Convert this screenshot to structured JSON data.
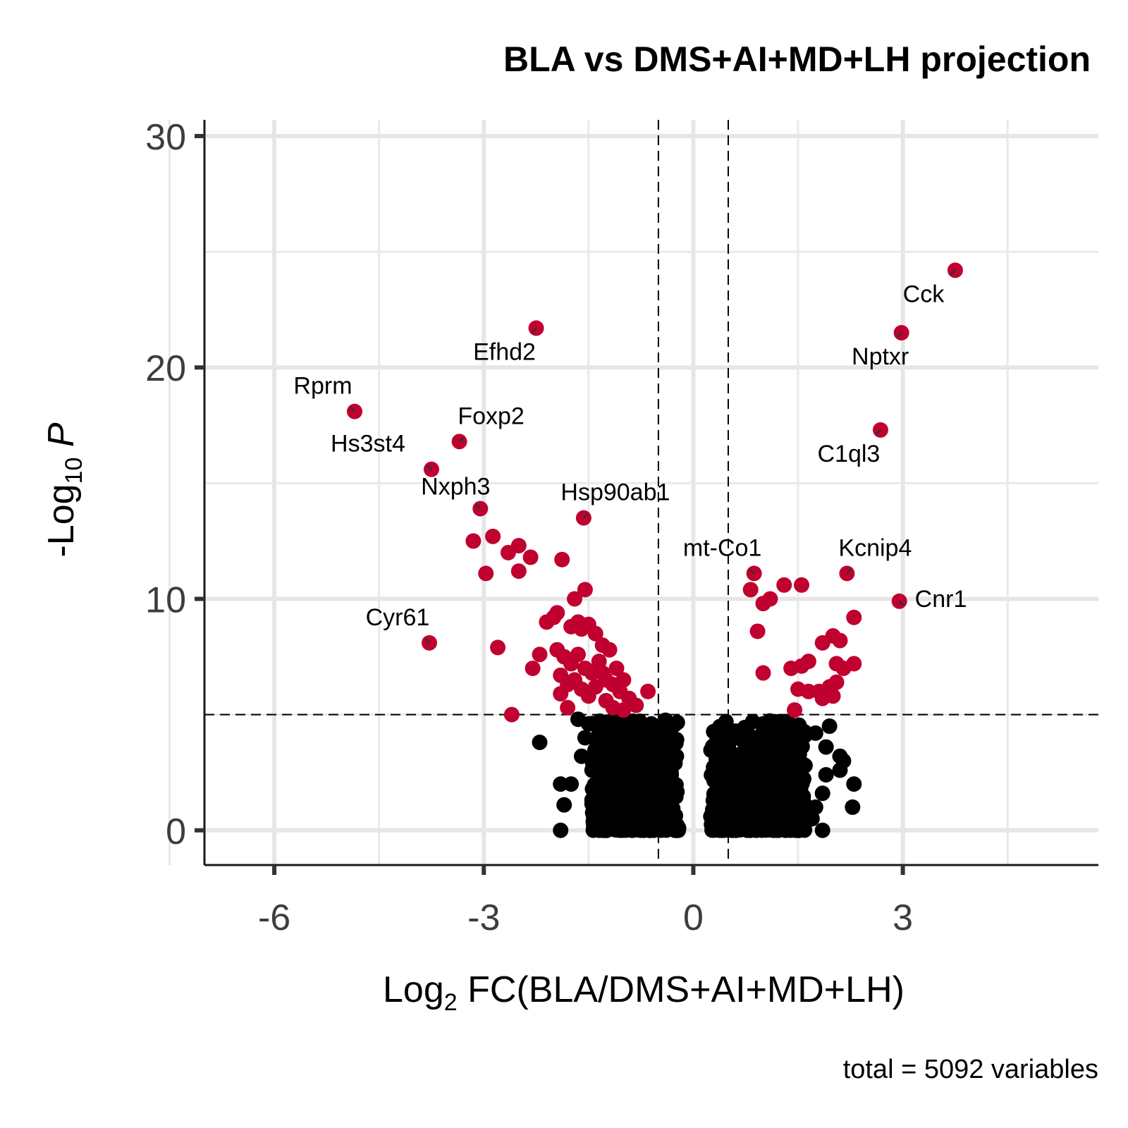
{
  "chart_data": {
    "type": "scatter",
    "title": "BLA vs DMS+AI+MD+LH projection",
    "xlabel_main": "Log",
    "xlabel_sub": "2",
    "xlabel_rest": " FC(BLA/DMS+AI+MD+LH)",
    "ylabel_main": "-Log",
    "ylabel_sub": "10",
    "ylabel_rest": " P",
    "caption": "total = 5092 variables",
    "xlim": [
      -7,
      5.8
    ],
    "ylim": [
      -1.5,
      30.7
    ],
    "x_ticks": [
      -6,
      -3,
      0,
      3
    ],
    "x_tick_labels": [
      "-6",
      "-3",
      "0",
      "3"
    ],
    "y_ticks": [
      0,
      10,
      20,
      30
    ],
    "y_tick_labels": [
      "0",
      "10",
      "20",
      "30"
    ],
    "fc_cutoff": 0.5,
    "p_cutoff": 5,
    "grid": true,
    "legend": "none",
    "colors": {
      "significant": "#C0002F",
      "not_significant": "#000000",
      "grid": "#E6E6E6"
    },
    "labeled_points": [
      {
        "gene": "Cck",
        "x": 3.75,
        "y": 24.2
      },
      {
        "gene": "Efhd2",
        "x": -2.25,
        "y": 21.7
      },
      {
        "gene": "Nptxr",
        "x": 2.98,
        "y": 21.5
      },
      {
        "gene": "Rprm",
        "x": -4.85,
        "y": 18.1
      },
      {
        "gene": "C1ql3",
        "x": 2.68,
        "y": 17.3
      },
      {
        "gene": "Foxp2",
        "x": -3.35,
        "y": 16.8
      },
      {
        "gene": "Hs3st4",
        "x": -3.75,
        "y": 15.6
      },
      {
        "gene": "Nxph3",
        "x": -3.05,
        "y": 13.9
      },
      {
        "gene": "Hsp90ab1",
        "x": -1.57,
        "y": 13.5
      },
      {
        "gene": "mt-Co1",
        "x": 0.87,
        "y": 11.1
      },
      {
        "gene": "Kcnip4",
        "x": 2.2,
        "y": 11.1
      },
      {
        "gene": "Cnr1",
        "x": 2.95,
        "y": 9.9
      },
      {
        "gene": "Cyr61",
        "x": -3.78,
        "y": 8.1
      }
    ],
    "significant_points": [
      [
        -3.15,
        12.5
      ],
      [
        -2.87,
        12.7
      ],
      [
        -2.65,
        12.0
      ],
      [
        -2.5,
        12.3
      ],
      [
        -2.33,
        11.8
      ],
      [
        -2.5,
        11.2
      ],
      [
        -2.97,
        11.1
      ],
      [
        -1.88,
        11.7
      ],
      [
        -1.7,
        10.0
      ],
      [
        -1.55,
        10.4
      ],
      [
        -2.1,
        9.0
      ],
      [
        -2.0,
        9.2
      ],
      [
        -1.95,
        9.4
      ],
      [
        -1.75,
        8.8
      ],
      [
        -1.65,
        9.0
      ],
      [
        -1.6,
        8.7
      ],
      [
        -1.5,
        8.9
      ],
      [
        -1.4,
        8.5
      ],
      [
        -1.3,
        8.0
      ],
      [
        -1.2,
        7.8
      ],
      [
        -1.1,
        7.0
      ],
      [
        -2.2,
        7.6
      ],
      [
        -2.3,
        7.0
      ],
      [
        -2.8,
        7.9
      ],
      [
        -1.95,
        7.8
      ],
      [
        -1.85,
        7.5
      ],
      [
        -1.75,
        7.2
      ],
      [
        -1.65,
        7.6
      ],
      [
        -1.55,
        7.0
      ],
      [
        -1.45,
        6.8
      ],
      [
        -1.35,
        7.3
      ],
      [
        -1.25,
        6.5
      ],
      [
        -1.15,
        6.3
      ],
      [
        -1.05,
        6.0
      ],
      [
        -0.92,
        5.7
      ],
      [
        -0.65,
        6.0
      ],
      [
        -0.82,
        5.4
      ],
      [
        -1.9,
        6.7
      ],
      [
        -1.8,
        6.3
      ],
      [
        -1.7,
        6.5
      ],
      [
        -1.6,
        6.1
      ],
      [
        -1.5,
        5.8
      ],
      [
        -1.4,
        6.2
      ],
      [
        -1.25,
        5.6
      ],
      [
        -1.15,
        5.3
      ],
      [
        -1.0,
        5.2
      ],
      [
        -1.9,
        5.9
      ],
      [
        -1.8,
        5.3
      ],
      [
        -2.6,
        5.0
      ],
      [
        -1.0,
        6.5
      ],
      [
        -1.3,
        6.8
      ],
      [
        0.82,
        10.4
      ],
      [
        1.0,
        9.8
      ],
      [
        1.1,
        10.0
      ],
      [
        1.3,
        10.6
      ],
      [
        1.55,
        10.6
      ],
      [
        0.92,
        8.6
      ],
      [
        1.0,
        6.8
      ],
      [
        1.4,
        7.0
      ],
      [
        1.55,
        7.1
      ],
      [
        1.65,
        7.3
      ],
      [
        1.5,
        6.1
      ],
      [
        1.65,
        6.0
      ],
      [
        1.8,
        6.0
      ],
      [
        1.85,
        5.7
      ],
      [
        1.95,
        6.2
      ],
      [
        2.0,
        5.8
      ],
      [
        2.05,
        6.4
      ],
      [
        1.45,
        5.2
      ],
      [
        1.85,
        8.1
      ],
      [
        2.0,
        8.4
      ],
      [
        2.1,
        8.2
      ],
      [
        2.3,
        9.2
      ],
      [
        2.05,
        7.2
      ],
      [
        2.15,
        7.0
      ],
      [
        2.3,
        7.2
      ]
    ],
    "nonsignificant_points": [
      [
        -2.2,
        3.8
      ],
      [
        -1.9,
        2.0
      ],
      [
        -1.85,
        1.1
      ],
      [
        -1.9,
        0.0
      ],
      [
        -1.75,
        2.0
      ],
      [
        -1.6,
        3.2
      ],
      [
        -1.55,
        4.0
      ],
      [
        -1.5,
        4.6
      ],
      [
        -1.4,
        3.5
      ],
      [
        -1.35,
        4.4
      ],
      [
        -1.65,
        4.8
      ],
      [
        -1.45,
        2.6
      ],
      [
        -1.2,
        4.2
      ],
      [
        -1.0,
        4.3
      ],
      [
        -0.95,
        3.0
      ],
      [
        -0.75,
        3.4
      ],
      [
        -0.6,
        4.6
      ],
      [
        -0.88,
        4.6
      ],
      [
        -0.5,
        2.6
      ],
      [
        -0.45,
        1.2
      ],
      [
        -0.4,
        0.8
      ],
      [
        -0.35,
        0.1
      ],
      [
        -0.6,
        1.9
      ],
      [
        -0.55,
        0.5
      ],
      [
        0.3,
        0.9
      ],
      [
        0.4,
        0.5
      ],
      [
        0.65,
        3.0
      ],
      [
        0.7,
        2.2
      ],
      [
        0.65,
        1.2
      ],
      [
        0.9,
        4.0
      ],
      [
        0.85,
        4.7
      ],
      [
        1.0,
        4.6
      ],
      [
        1.2,
        4.5
      ],
      [
        1.5,
        4.4
      ],
      [
        1.3,
        3.7
      ],
      [
        1.6,
        4.1
      ],
      [
        1.75,
        4.2
      ],
      [
        1.9,
        3.6
      ],
      [
        1.95,
        4.5
      ],
      [
        2.1,
        3.2
      ],
      [
        2.15,
        3.0
      ],
      [
        2.1,
        2.6
      ],
      [
        2.3,
        2.0
      ],
      [
        2.28,
        1.0
      ],
      [
        1.9,
        2.4
      ],
      [
        1.85,
        1.6
      ],
      [
        1.6,
        2.8
      ],
      [
        1.55,
        1.3
      ],
      [
        1.7,
        0.5
      ],
      [
        1.85,
        0.0
      ],
      [
        1.75,
        1.0
      ]
    ],
    "dense_clusters": [
      {
        "x_range": [
          -1.45,
          -0.2
        ],
        "y_max": 4.8
      },
      {
        "x_range": [
          0.25,
          1.6
        ],
        "y_max": 4.8
      }
    ]
  }
}
